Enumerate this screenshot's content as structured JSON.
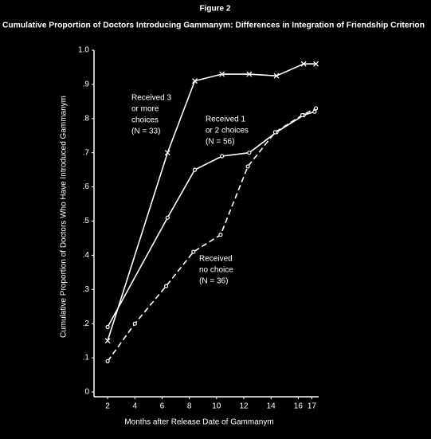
{
  "chart_data": {
    "type": "line",
    "figure_label": "Figure 2",
    "title": "Cumulative Proportion of Doctors Introducing Gammanym: Differences in Integration of Friendship Criterion",
    "x_label": "Months after Release Date of Gammanym",
    "y_label": "Cumulative Proportion of Doctors Who Have Introduced Gammanym",
    "xlim": [
      1,
      17.5
    ],
    "xticks": [
      2,
      4,
      6,
      8,
      10,
      12,
      14,
      16,
      17
    ],
    "ylim": [
      0,
      1.0
    ],
    "yticks": [
      0,
      {
        "value": 0.1,
        "label": ".1"
      },
      {
        "value": 0.2,
        "label": ".2"
      },
      {
        "value": 0.3,
        "label": ".3"
      },
      {
        "value": 0.4,
        "label": ".4"
      },
      {
        "value": 0.5,
        "label": ".5"
      },
      {
        "value": 0.6,
        "label": ".6"
      },
      {
        "value": 0.7,
        "label": ".7"
      },
      {
        "value": 0.8,
        "label": ".8"
      },
      {
        "value": 0.9,
        "label": ".9"
      },
      {
        "value": 1.0,
        "label": "1.0"
      }
    ],
    "series": [
      {
        "marker": "x",
        "dash": false,
        "color": "#ffffff",
        "x": [
          2,
          6.4,
          8.4,
          10.4,
          12.4,
          14.4,
          16.4,
          17.3
        ],
        "values": [
          0.15,
          0.7,
          0.91,
          0.93,
          0.93,
          0.925,
          0.96,
          0.96
        ]
      },
      {
        "marker": "circle",
        "dash": false,
        "color": "#ffffff",
        "x": [
          2,
          6.4,
          8.4,
          10.4,
          12.4,
          14.4,
          16.4,
          17.2
        ],
        "values": [
          0.19,
          0.51,
          0.65,
          0.69,
          0.7,
          0.76,
          0.81,
          0.82
        ]
      },
      {
        "marker": "circle",
        "dash": true,
        "color": "#ffffff",
        "x": [
          2,
          4,
          6.3,
          8.3,
          10.3,
          12.3,
          14.3,
          16.3,
          17.3
        ],
        "values": [
          0.09,
          0.2,
          0.31,
          0.41,
          0.46,
          0.66,
          0.76,
          0.81,
          0.83
        ]
      }
    ],
    "annotations": [
      {
        "lines": [
          "Received 3",
          "or more",
          "choices",
          "(N = 33)"
        ]
      },
      {
        "lines": [
          "Received 1",
          "or 2 choices",
          "(N = 56)"
        ]
      },
      {
        "lines": [
          "Received",
          "no choice",
          "(N = 36)"
        ]
      }
    ]
  }
}
